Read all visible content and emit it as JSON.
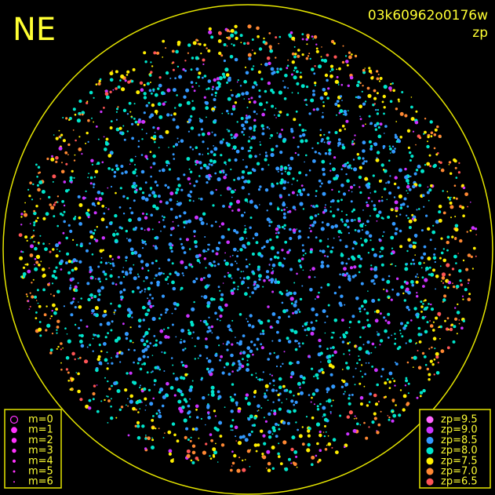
{
  "header": {
    "direction": "NE",
    "frame_id": "03k60962o0176w",
    "mode": "zp"
  },
  "magnitude_legend": {
    "entries": [
      "m=0",
      "m=1",
      "m=2",
      "m=3",
      "m=4",
      "m=5",
      "m=6"
    ],
    "color": "#ff33ff"
  },
  "zp_legend": {
    "entries": [
      {
        "label": "zp=9.5",
        "color": "#ff66ff"
      },
      {
        "label": "zp=9.0",
        "color": "#cc33ff"
      },
      {
        "label": "zp=8.5",
        "color": "#3399ff"
      },
      {
        "label": "zp=8.0",
        "color": "#00e5cc"
      },
      {
        "label": "zp=7.5",
        "color": "#ffee00"
      },
      {
        "label": "zp=7.0",
        "color": "#ff8833"
      },
      {
        "label": "zp=6.5",
        "color": "#ff5555"
      }
    ]
  }
}
